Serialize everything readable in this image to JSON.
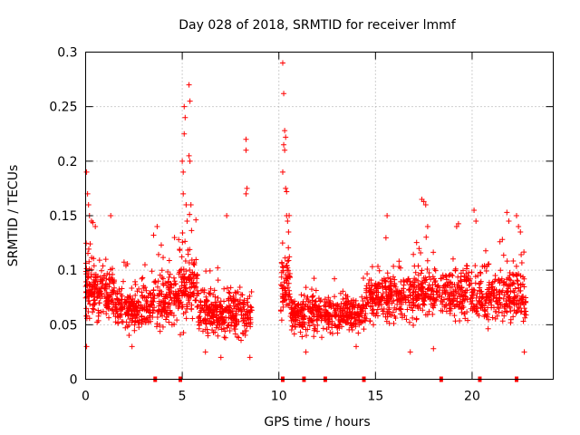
{
  "chart_data": {
    "type": "scatter",
    "title": "Day 028 of 2018, SRMTID for receiver lmmf",
    "xlabel": "GPS time / hours",
    "ylabel": "SRMTID / TECUs",
    "xlim": [
      0,
      24.2
    ],
    "ylim": [
      0,
      0.3
    ],
    "xticks": [
      0,
      5,
      10,
      15,
      20
    ],
    "xtick_labels": [
      "0",
      "5",
      "10",
      "15",
      "20"
    ],
    "yticks": [
      0,
      0.05,
      0.1,
      0.15,
      0.2,
      0.25,
      0.3
    ],
    "ytick_labels": [
      "0",
      "0.05",
      "0.1",
      "0.15",
      "0.2",
      "0.25",
      "0.3"
    ],
    "grid": true,
    "marker": "+",
    "color": "#ff0000",
    "gap_hours": [
      3.6,
      4.9,
      10.2,
      11.3,
      12.4,
      14.4,
      18.4,
      20.4,
      22.3
    ],
    "segments": [
      {
        "x0": 0.0,
        "x1": 0.5,
        "base": 0.085,
        "spread": 0.035,
        "n": 90
      },
      {
        "x0": 0.5,
        "x1": 1.5,
        "base": 0.08,
        "spread": 0.03,
        "n": 120
      },
      {
        "x0": 1.5,
        "x1": 3.5,
        "base": 0.065,
        "spread": 0.025,
        "n": 220
      },
      {
        "x0": 3.5,
        "x1": 4.8,
        "base": 0.075,
        "spread": 0.03,
        "n": 140
      },
      {
        "x0": 4.8,
        "x1": 5.8,
        "base": 0.085,
        "spread": 0.04,
        "n": 130
      },
      {
        "x0": 5.8,
        "x1": 8.6,
        "base": 0.06,
        "spread": 0.025,
        "n": 320
      },
      {
        "x0": 10.1,
        "x1": 10.6,
        "base": 0.09,
        "spread": 0.04,
        "n": 70
      },
      {
        "x0": 10.6,
        "x1": 14.5,
        "base": 0.06,
        "spread": 0.02,
        "n": 420
      },
      {
        "x0": 14.5,
        "x1": 17.0,
        "base": 0.075,
        "spread": 0.025,
        "n": 260
      },
      {
        "x0": 17.0,
        "x1": 20.0,
        "base": 0.08,
        "spread": 0.03,
        "n": 300
      },
      {
        "x0": 20.0,
        "x1": 22.8,
        "base": 0.075,
        "spread": 0.03,
        "n": 280
      }
    ],
    "outliers": [
      {
        "x": 0.05,
        "y": 0.19
      },
      {
        "x": 0.1,
        "y": 0.17
      },
      {
        "x": 0.15,
        "y": 0.16
      },
      {
        "x": 0.2,
        "y": 0.15
      },
      {
        "x": 0.3,
        "y": 0.145
      },
      {
        "x": 0.5,
        "y": 0.14
      },
      {
        "x": 1.3,
        "y": 0.15
      },
      {
        "x": 3.7,
        "y": 0.14
      },
      {
        "x": 4.6,
        "y": 0.13
      },
      {
        "x": 5.0,
        "y": 0.2
      },
      {
        "x": 5.05,
        "y": 0.19
      },
      {
        "x": 5.1,
        "y": 0.25
      },
      {
        "x": 5.15,
        "y": 0.24
      },
      {
        "x": 5.1,
        "y": 0.225
      },
      {
        "x": 5.05,
        "y": 0.17
      },
      {
        "x": 5.2,
        "y": 0.16
      },
      {
        "x": 5.25,
        "y": 0.145
      },
      {
        "x": 5.35,
        "y": 0.27
      },
      {
        "x": 5.4,
        "y": 0.255
      },
      {
        "x": 5.35,
        "y": 0.205
      },
      {
        "x": 5.4,
        "y": 0.2
      },
      {
        "x": 5.45,
        "y": 0.16
      },
      {
        "x": 7.3,
        "y": 0.15
      },
      {
        "x": 8.3,
        "y": 0.22
      },
      {
        "x": 8.3,
        "y": 0.21
      },
      {
        "x": 8.35,
        "y": 0.175
      },
      {
        "x": 8.3,
        "y": 0.17
      },
      {
        "x": 10.2,
        "y": 0.29
      },
      {
        "x": 10.25,
        "y": 0.262
      },
      {
        "x": 10.3,
        "y": 0.228
      },
      {
        "x": 10.35,
        "y": 0.222
      },
      {
        "x": 10.25,
        "y": 0.215
      },
      {
        "x": 10.3,
        "y": 0.21
      },
      {
        "x": 10.2,
        "y": 0.19
      },
      {
        "x": 10.35,
        "y": 0.175
      },
      {
        "x": 10.4,
        "y": 0.172
      },
      {
        "x": 10.4,
        "y": 0.15
      },
      {
        "x": 10.45,
        "y": 0.145
      },
      {
        "x": 10.5,
        "y": 0.135
      },
      {
        "x": 15.6,
        "y": 0.15
      },
      {
        "x": 17.4,
        "y": 0.165
      },
      {
        "x": 17.5,
        "y": 0.163
      },
      {
        "x": 17.6,
        "y": 0.16
      },
      {
        "x": 17.7,
        "y": 0.14
      },
      {
        "x": 19.2,
        "y": 0.14
      },
      {
        "x": 20.1,
        "y": 0.155
      },
      {
        "x": 20.2,
        "y": 0.145
      },
      {
        "x": 21.8,
        "y": 0.153
      },
      {
        "x": 21.9,
        "y": 0.145
      },
      {
        "x": 22.3,
        "y": 0.15
      },
      {
        "x": 22.4,
        "y": 0.14
      },
      {
        "x": 22.5,
        "y": 0.135
      }
    ],
    "lows": [
      {
        "x": 0.05,
        "y": 0.03
      },
      {
        "x": 2.4,
        "y": 0.03
      },
      {
        "x": 6.2,
        "y": 0.025
      },
      {
        "x": 7.0,
        "y": 0.02
      },
      {
        "x": 8.5,
        "y": 0.02
      },
      {
        "x": 11.4,
        "y": 0.025
      },
      {
        "x": 14.0,
        "y": 0.03
      },
      {
        "x": 16.8,
        "y": 0.025
      },
      {
        "x": 18.0,
        "y": 0.028
      },
      {
        "x": 22.7,
        "y": 0.025
      }
    ]
  }
}
